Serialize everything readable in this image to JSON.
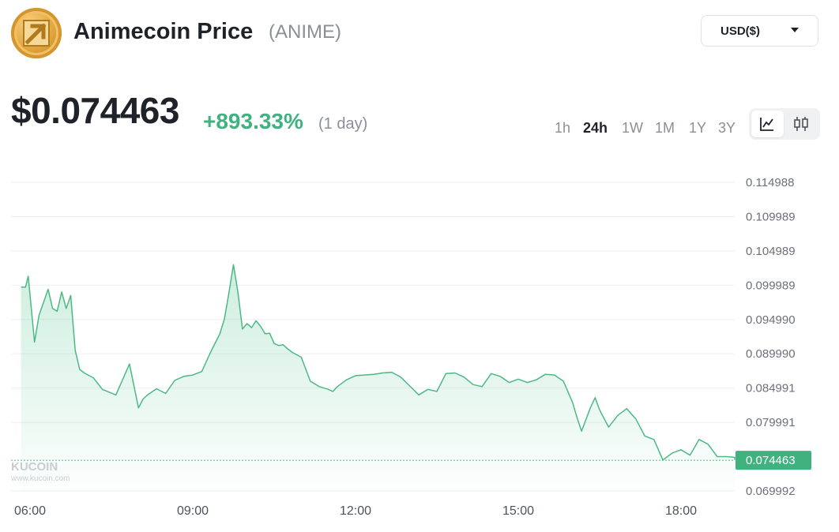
{
  "header": {
    "logo_icon": "animecoin-logo-icon",
    "title": "Animecoin Price",
    "ticker": "(ANIME)",
    "currency_select": {
      "value": "USD($)",
      "icon": "caret-down-icon"
    }
  },
  "price": {
    "value": "$0.074463",
    "change": "+893.33%",
    "period": "(1 day)"
  },
  "time_ranges": [
    {
      "label": "1h",
      "active": false
    },
    {
      "label": "24h",
      "active": true
    },
    {
      "label": "1W",
      "active": false
    },
    {
      "label": "1M",
      "active": false
    },
    {
      "label": "1Y",
      "active": false
    },
    {
      "label": "3Y",
      "active": false
    }
  ],
  "chart_toggle": {
    "line_icon": "line-chart-icon",
    "candle_icon": "candlestick-icon",
    "active": "line"
  },
  "colors": {
    "up": "#3fb27f",
    "line": "#4cb985",
    "badge": "#3fb27f",
    "grid": "#eef0f2"
  },
  "watermark": {
    "brand": "KUCOIN",
    "site": "www.kucoin.com"
  },
  "chart_data": {
    "type": "area",
    "title": "",
    "xlabel": "",
    "ylabel": "",
    "x_ticks": [
      "06:00",
      "09:00",
      "12:00",
      "15:00",
      "18:00"
    ],
    "y_ticks": [
      "0.114988",
      "0.109989",
      "0.104989",
      "0.099989",
      "0.094990",
      "0.089990",
      "0.084991",
      "0.079991",
      "0.074463",
      "0.069992"
    ],
    "ylim": [
      0.069992,
      0.114988
    ],
    "current_value": 0.074463,
    "current_label": "0.074463",
    "grid": true,
    "series": [
      {
        "x": [
          "05:50",
          "05:55",
          "05:58",
          "06:05",
          "06:10",
          "06:20",
          "06:25",
          "06:30",
          "06:35",
          "06:40",
          "06:45",
          "06:50",
          "06:55",
          "07:00",
          "07:10",
          "07:20",
          "07:35",
          "07:50",
          "08:00",
          "08:05",
          "08:10",
          "08:20",
          "08:30",
          "08:40",
          "08:50",
          "09:00",
          "09:10",
          "09:20",
          "09:30",
          "09:35",
          "09:40",
          "09:45",
          "09:50",
          "09:55",
          "10:00",
          "10:05",
          "10:10",
          "10:15",
          "10:20",
          "10:25",
          "10:30",
          "10:35",
          "10:40",
          "10:45",
          "10:50",
          "11:00",
          "11:10",
          "11:20",
          "11:30",
          "11:35",
          "11:40",
          "11:50",
          "12:00",
          "12:10",
          "12:20",
          "12:30",
          "12:40",
          "12:50",
          "13:00",
          "13:10",
          "13:20",
          "13:30",
          "13:40",
          "13:50",
          "14:00",
          "14:10",
          "14:20",
          "14:30",
          "14:40",
          "14:50",
          "15:00",
          "15:10",
          "15:20",
          "15:30",
          "15:40",
          "15:50",
          "16:00",
          "16:05",
          "16:10",
          "16:20",
          "16:25",
          "16:30",
          "16:40",
          "16:50",
          "17:00",
          "17:10",
          "17:20",
          "17:30",
          "17:40",
          "17:50",
          "18:00",
          "18:10",
          "18:20",
          "18:30",
          "18:40",
          "18:50",
          "19:00",
          "19:05"
        ],
        "values": [
          0.0997,
          0.0997,
          0.1013,
          0.0917,
          0.0956,
          0.0994,
          0.0966,
          0.0962,
          0.099,
          0.0966,
          0.0985,
          0.0905,
          0.0877,
          0.0872,
          0.0865,
          0.0848,
          0.084,
          0.0885,
          0.0821,
          0.0834,
          0.084,
          0.0849,
          0.0842,
          0.0861,
          0.0867,
          0.0869,
          0.0874,
          0.0903,
          0.0929,
          0.0951,
          0.0989,
          0.103,
          0.0989,
          0.0936,
          0.0944,
          0.0938,
          0.0948,
          0.094,
          0.0929,
          0.093,
          0.0915,
          0.0912,
          0.0913,
          0.0907,
          0.0902,
          0.0895,
          0.086,
          0.0852,
          0.0848,
          0.0845,
          0.0852,
          0.0862,
          0.0868,
          0.0869,
          0.087,
          0.0872,
          0.0873,
          0.0866,
          0.0853,
          0.084,
          0.0848,
          0.0845,
          0.0871,
          0.0872,
          0.0866,
          0.0855,
          0.0852,
          0.0871,
          0.0867,
          0.0858,
          0.0863,
          0.0858,
          0.0862,
          0.087,
          0.0869,
          0.086,
          0.0829,
          0.0807,
          0.0787,
          0.0822,
          0.0836,
          0.0818,
          0.0793,
          0.081,
          0.082,
          0.0805,
          0.078,
          0.0775,
          0.0745,
          0.0755,
          0.076,
          0.0752,
          0.0775,
          0.0768,
          0.075,
          0.075,
          0.0749,
          0.0745
        ]
      }
    ]
  }
}
